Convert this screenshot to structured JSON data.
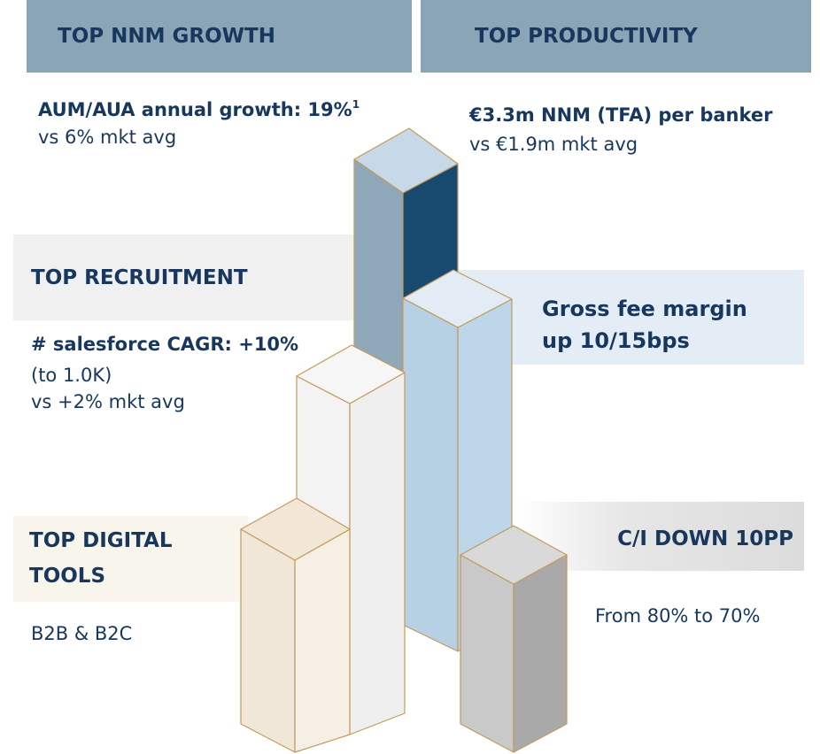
{
  "headers": {
    "left": "TOP NNM GROWTH",
    "right": "TOP PRODUCTIVITY"
  },
  "nnm_growth": {
    "headline": "AUM/AUA annual growth: 19%",
    "footnote_marker": "1",
    "detail": "vs 6% mkt avg"
  },
  "productivity": {
    "headline": "€3.3m NNM (TFA) per banker",
    "detail": "vs  €1.9m mkt avg"
  },
  "recruitment": {
    "title": "TOP RECRUITMENT",
    "headline": "# salesforce CAGR: +10%",
    "details": [
      "(to 1.0K)",
      "vs +2% mkt avg"
    ]
  },
  "fee_margin": {
    "lines": [
      "Gross fee margin",
      "up 10/15bps"
    ]
  },
  "digital": {
    "title_lines": [
      "TOP DIGITAL",
      "TOOLS"
    ],
    "detail": "B2B & B2C"
  },
  "cost_income": {
    "title": "C/I DOWN 10PP",
    "detail": "From 80% to 70%"
  }
}
